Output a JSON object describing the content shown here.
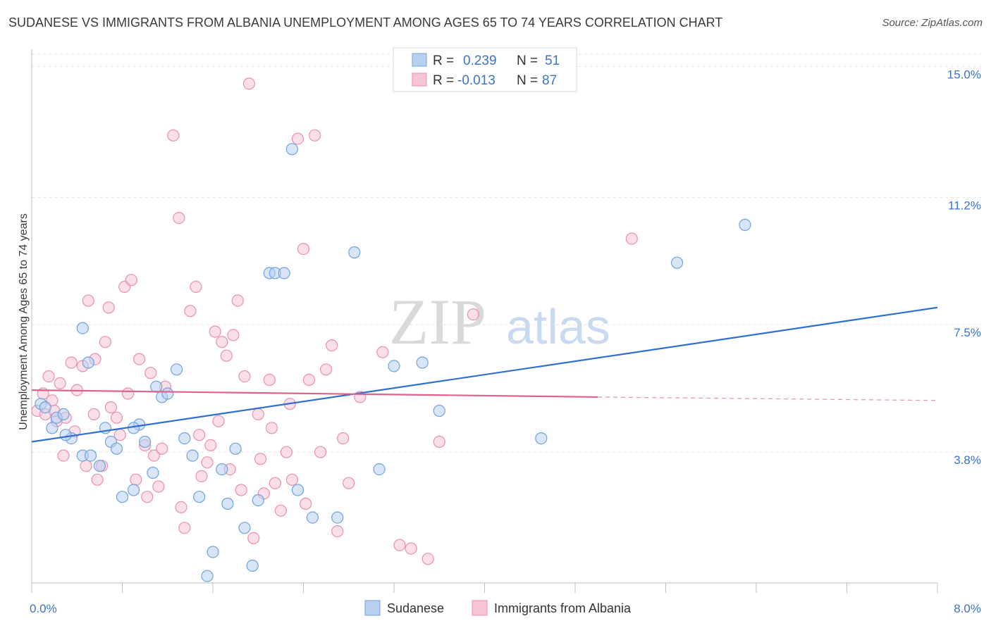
{
  "title": "SUDANESE VS IMMIGRANTS FROM ALBANIA UNEMPLOYMENT AMONG AGES 65 TO 74 YEARS CORRELATION CHART",
  "source": "Source: ZipAtlas.com",
  "watermark": {
    "zip": "ZIP",
    "atlas": "atlas"
  },
  "legend": {
    "r_label": "R =",
    "n_label": "N =",
    "rows": [
      {
        "r": "0.239",
        "n": "51"
      },
      {
        "r": "-0.013",
        "n": "87"
      }
    ]
  },
  "bottom_legend": [
    "Sudanese",
    "Immigrants from Albania"
  ],
  "chart_data": {
    "type": "scatter",
    "title": "SUDANESE VS IMMIGRANTS FROM ALBANIA UNEMPLOYMENT AMONG AGES 65 TO 74 YEARS CORRELATION CHART",
    "xlabel": "",
    "ylabel": "Unemployment Among Ages 65 to 74 years",
    "xlim": [
      0.0,
      8.0
    ],
    "ylim": [
      0.0,
      15.5
    ],
    "x_tick_labels": [
      "0.0%",
      "8.0%"
    ],
    "y_ticks": [
      3.8,
      7.5,
      11.2,
      15.0
    ],
    "y_tick_labels": [
      "3.8%",
      "7.5%",
      "11.2%",
      "15.0%"
    ],
    "grid": "horizontal dashed",
    "legend_position": "top-center",
    "series": [
      {
        "name": "Sudanese",
        "color": "#6fa3e0",
        "fill": "#b8d0f0",
        "trend": {
          "x": [
            0.0,
            8.0
          ],
          "y": [
            4.1,
            8.0
          ],
          "color": "#2f6fd0"
        },
        "points": [
          [
            0.08,
            5.2
          ],
          [
            0.12,
            5.1
          ],
          [
            0.18,
            4.5
          ],
          [
            0.22,
            4.8
          ],
          [
            0.28,
            4.9
          ],
          [
            0.35,
            4.2
          ],
          [
            0.45,
            3.7
          ],
          [
            0.52,
            3.7
          ],
          [
            0.6,
            3.4
          ],
          [
            0.65,
            4.5
          ],
          [
            0.7,
            4.1
          ],
          [
            0.75,
            3.9
          ],
          [
            0.8,
            2.5
          ],
          [
            0.9,
            2.7
          ],
          [
            0.95,
            4.6
          ],
          [
            1.0,
            4.1
          ],
          [
            1.07,
            3.2
          ],
          [
            1.15,
            5.4
          ],
          [
            1.2,
            5.5
          ],
          [
            1.28,
            6.2
          ],
          [
            1.35,
            4.2
          ],
          [
            1.42,
            3.7
          ],
          [
            1.48,
            2.5
          ],
          [
            1.55,
            0.2
          ],
          [
            1.6,
            0.9
          ],
          [
            1.68,
            3.3
          ],
          [
            1.73,
            2.3
          ],
          [
            1.8,
            3.9
          ],
          [
            1.88,
            1.6
          ],
          [
            1.95,
            0.5
          ],
          [
            2.0,
            2.4
          ],
          [
            2.1,
            9.0
          ],
          [
            2.15,
            9.0
          ],
          [
            2.23,
            9.0
          ],
          [
            2.3,
            12.6
          ],
          [
            2.35,
            2.7
          ],
          [
            2.48,
            1.9
          ],
          [
            2.7,
            1.9
          ],
          [
            2.85,
            9.6
          ],
          [
            3.07,
            3.3
          ],
          [
            3.2,
            6.3
          ],
          [
            3.45,
            6.4
          ],
          [
            3.6,
            5.0
          ],
          [
            4.5,
            4.2
          ],
          [
            5.7,
            9.3
          ],
          [
            6.3,
            10.4
          ],
          [
            0.45,
            7.4
          ],
          [
            0.5,
            6.4
          ],
          [
            0.3,
            4.3
          ],
          [
            0.9,
            4.5
          ],
          [
            1.1,
            5.7
          ]
        ]
      },
      {
        "name": "Immigrants from Albania",
        "color": "#e890b0",
        "fill": "#f6c4d6",
        "trend": {
          "x": [
            0.0,
            5.0
          ],
          "y": [
            5.6,
            5.4
          ],
          "color": "#e0608e",
          "dashed_to": [
            8.0,
            5.3
          ]
        },
        "points": [
          [
            0.05,
            5.0
          ],
          [
            0.1,
            5.5
          ],
          [
            0.12,
            4.9
          ],
          [
            0.18,
            5.3
          ],
          [
            0.22,
            4.7
          ],
          [
            0.25,
            5.8
          ],
          [
            0.3,
            4.8
          ],
          [
            0.35,
            6.4
          ],
          [
            0.4,
            5.6
          ],
          [
            0.45,
            6.3
          ],
          [
            0.5,
            8.2
          ],
          [
            0.55,
            4.9
          ],
          [
            0.58,
            3.0
          ],
          [
            0.62,
            3.4
          ],
          [
            0.65,
            7.0
          ],
          [
            0.7,
            5.1
          ],
          [
            0.75,
            4.8
          ],
          [
            0.78,
            4.3
          ],
          [
            0.82,
            8.6
          ],
          [
            0.88,
            8.8
          ],
          [
            0.92,
            3.0
          ],
          [
            0.95,
            6.5
          ],
          [
            1.0,
            4.0
          ],
          [
            1.05,
            6.1
          ],
          [
            1.08,
            3.7
          ],
          [
            1.12,
            2.8
          ],
          [
            1.18,
            5.7
          ],
          [
            1.25,
            13.0
          ],
          [
            1.3,
            10.6
          ],
          [
            1.35,
            1.6
          ],
          [
            1.4,
            7.9
          ],
          [
            1.45,
            8.6
          ],
          [
            1.5,
            3.1
          ],
          [
            1.55,
            3.5
          ],
          [
            1.58,
            4.0
          ],
          [
            1.62,
            7.3
          ],
          [
            1.68,
            7.0
          ],
          [
            1.72,
            6.6
          ],
          [
            1.78,
            7.2
          ],
          [
            1.82,
            8.2
          ],
          [
            1.88,
            6.0
          ],
          [
            1.92,
            14.5
          ],
          [
            1.96,
            1.3
          ],
          [
            2.0,
            4.9
          ],
          [
            2.05,
            2.6
          ],
          [
            2.1,
            5.9
          ],
          [
            2.15,
            2.9
          ],
          [
            2.2,
            2.1
          ],
          [
            2.25,
            3.8
          ],
          [
            2.3,
            3.0
          ],
          [
            2.35,
            12.9
          ],
          [
            2.4,
            9.7
          ],
          [
            2.45,
            5.9
          ],
          [
            2.5,
            13.0
          ],
          [
            2.55,
            3.8
          ],
          [
            2.6,
            6.2
          ],
          [
            2.65,
            6.9
          ],
          [
            2.7,
            1.5
          ],
          [
            2.75,
            4.2
          ],
          [
            2.8,
            2.9
          ],
          [
            2.9,
            5.4
          ],
          [
            3.1,
            6.7
          ],
          [
            3.25,
            1.1
          ],
          [
            3.5,
            0.7
          ],
          [
            3.6,
            4.1
          ],
          [
            3.9,
            7.8
          ],
          [
            5.3,
            10.0
          ],
          [
            0.15,
            6.0
          ],
          [
            0.2,
            5.0
          ],
          [
            0.28,
            3.7
          ],
          [
            0.38,
            4.4
          ],
          [
            0.48,
            3.4
          ],
          [
            0.56,
            6.5
          ],
          [
            0.68,
            8.0
          ],
          [
            0.85,
            5.5
          ],
          [
            1.02,
            2.5
          ],
          [
            1.15,
            3.9
          ],
          [
            1.32,
            2.2
          ],
          [
            1.48,
            4.3
          ],
          [
            1.65,
            4.7
          ],
          [
            1.75,
            3.3
          ],
          [
            1.85,
            2.7
          ],
          [
            2.02,
            3.6
          ],
          [
            2.12,
            4.5
          ],
          [
            2.28,
            5.2
          ],
          [
            2.42,
            2.3
          ],
          [
            3.35,
            1.0
          ]
        ]
      }
    ]
  }
}
